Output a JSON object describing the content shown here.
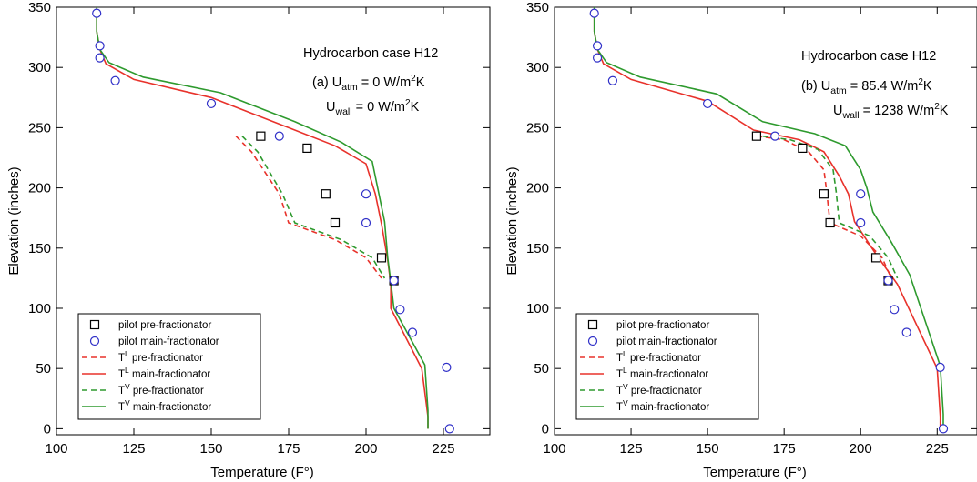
{
  "chart_data": [
    {
      "type": "line",
      "panel": "(a)",
      "annotations": {
        "title": "Hydrocarbon case H12",
        "uatm_prefix": "(a)  U",
        "uatm_sub": "atm",
        "uatm_value": " = 0 W/m",
        "uwall_prefix": "U",
        "uwall_sub": "wall",
        "uwall_value": " = 0 W/m",
        "unit_sup": "2",
        "unit_tail": "K"
      },
      "xlabel": "Temperature (F°)",
      "ylabel": "Elevation (inches)",
      "xlim": [
        100,
        240
      ],
      "ylim": [
        -5,
        350
      ],
      "xticks": [
        100,
        125,
        150,
        175,
        200,
        225
      ],
      "yticks": [
        0,
        50,
        100,
        150,
        200,
        250,
        300,
        350
      ],
      "legend": {
        "placement": "bottom-left",
        "entries": [
          {
            "marker": "square",
            "text": "pilot pre-fractionator"
          },
          {
            "marker": "circle",
            "text": "pilot main-fractionator"
          },
          {
            "line": "dashed",
            "color": "#e8322b",
            "sym": "T",
            "sup": "L",
            "text": " pre-fractionator"
          },
          {
            "line": "solid",
            "color": "#e8322b",
            "sym": "T",
            "sup": "L",
            "text": " main-fractionator"
          },
          {
            "line": "dashed",
            "color": "#2e9a2e",
            "sym": "T",
            "sup": "V",
            "text": " pre-fractionator"
          },
          {
            "line": "solid",
            "color": "#2e9a2e",
            "sym": "T",
            "sup": "V",
            "text": " main-fractionator"
          }
        ]
      },
      "series": [
        {
          "name": "pilot pre-fractionator",
          "kind": "scatter",
          "marker": "square",
          "color": "#000000",
          "x": [
            166,
            181,
            187,
            190,
            205,
            209
          ],
          "y": [
            243,
            233,
            195,
            171,
            142,
            123
          ]
        },
        {
          "name": "pilot main-fractionator",
          "kind": "scatter",
          "marker": "circle",
          "color": "#3030c8",
          "x": [
            113,
            114,
            114,
            119,
            150,
            172,
            200,
            200,
            209,
            211,
            215,
            226,
            227
          ],
          "y": [
            345,
            318,
            308,
            289,
            270,
            243,
            195,
            171,
            123,
            99,
            80,
            51,
            0
          ]
        },
        {
          "name": "T pre-fractionator (L)",
          "kind": "line",
          "dash": true,
          "color": "#e8322b",
          "x": [
            158,
            163,
            172,
            175,
            190,
            200,
            205
          ],
          "y": [
            243,
            230,
            195,
            171,
            157,
            142,
            125
          ]
        },
        {
          "name": "T main-fractionator (L)",
          "kind": "line",
          "dash": false,
          "color": "#e8322b",
          "x": [
            113,
            113,
            114,
            116,
            125,
            150,
            175,
            190,
            200,
            203,
            205,
            207,
            208,
            208,
            218,
            220,
            220
          ],
          "y": [
            350,
            330,
            315,
            303,
            290,
            275,
            250,
            235,
            220,
            195,
            170,
            140,
            120,
            100,
            50,
            10,
            0
          ]
        },
        {
          "name": "T pre-fractionator (V)",
          "kind": "line",
          "dash": true,
          "color": "#2e9a2e",
          "x": [
            160,
            165,
            173,
            177,
            192,
            202,
            206
          ],
          "y": [
            243,
            230,
            195,
            171,
            157,
            142,
            125
          ]
        },
        {
          "name": "T main-fractionator (V)",
          "kind": "line",
          "dash": false,
          "color": "#2e9a2e",
          "x": [
            113,
            113,
            114,
            117,
            128,
            153,
            177,
            192,
            202,
            204,
            206,
            207,
            208,
            209,
            219,
            220,
            220
          ],
          "y": [
            350,
            330,
            315,
            304,
            292,
            279,
            255,
            238,
            222,
            197,
            172,
            142,
            122,
            100,
            53,
            15,
            0
          ]
        }
      ]
    },
    {
      "type": "line",
      "panel": "(b)",
      "annotations": {
        "title": "Hydrocarbon case H12",
        "uatm_prefix": "(b)  U",
        "uatm_sub": "atm",
        "uatm_value": " = 85.4 W/m",
        "uwall_prefix": "U",
        "uwall_sub": "wall",
        "uwall_value": " = 1238 W/m",
        "unit_sup": "2",
        "unit_tail": "K"
      },
      "xlabel": "Temperature (F°)",
      "ylabel": "Elevation (inches)",
      "xlim": [
        100,
        238
      ],
      "ylim": [
        -5,
        350
      ],
      "xticks": [
        100,
        125,
        150,
        175,
        200,
        225
      ],
      "yticks": [
        0,
        50,
        100,
        150,
        200,
        250,
        300,
        350
      ],
      "legend": {
        "placement": "bottom-left",
        "entries": [
          {
            "marker": "square",
            "text": "pilot pre-fractionator"
          },
          {
            "marker": "circle",
            "text": "pilot main-fractionator"
          },
          {
            "line": "dashed",
            "color": "#e8322b",
            "sym": "T",
            "sup": "L",
            "text": " pre-fractionator"
          },
          {
            "line": "solid",
            "color": "#e8322b",
            "sym": "T",
            "sup": "L",
            "text": " main-fractionator"
          },
          {
            "line": "dashed",
            "color": "#2e9a2e",
            "sym": "T",
            "sup": "V",
            "text": " pre-fractionator"
          },
          {
            "line": "solid",
            "color": "#2e9a2e",
            "sym": "T",
            "sup": "V",
            "text": " main-fractionator"
          }
        ]
      },
      "series": [
        {
          "name": "pilot pre-fractionator",
          "kind": "scatter",
          "marker": "square",
          "color": "#000000",
          "x": [
            166,
            181,
            188,
            190,
            205,
            209
          ],
          "y": [
            243,
            233,
            195,
            171,
            142,
            123
          ]
        },
        {
          "name": "pilot main-fractionator",
          "kind": "scatter",
          "marker": "circle",
          "color": "#3030c8",
          "x": [
            113,
            114,
            114,
            119,
            150,
            172,
            200,
            200,
            209,
            211,
            215,
            226,
            227
          ],
          "y": [
            345,
            318,
            308,
            289,
            270,
            243,
            195,
            171,
            123,
            99,
            80,
            51,
            0
          ]
        },
        {
          "name": "T pre-fractionator (L)",
          "kind": "line",
          "dash": true,
          "color": "#e8322b",
          "x": [
            166,
            175,
            183,
            188,
            189,
            190,
            200,
            207,
            210
          ],
          "y": [
            243,
            240,
            230,
            215,
            195,
            171,
            160,
            142,
            125
          ]
        },
        {
          "name": "T main-fractionator (L)",
          "kind": "line",
          "dash": false,
          "color": "#e8322b",
          "x": [
            113,
            113,
            114,
            116,
            125,
            150,
            165,
            180,
            188,
            193,
            196,
            198,
            205,
            212,
            225,
            226,
            226
          ],
          "y": [
            350,
            330,
            315,
            303,
            290,
            272,
            248,
            240,
            230,
            210,
            195,
            172,
            145,
            120,
            50,
            10,
            0
          ]
        },
        {
          "name": "T pre-fractionator (V)",
          "kind": "line",
          "dash": true,
          "color": "#2e9a2e",
          "x": [
            168,
            177,
            186,
            191,
            192,
            193,
            203,
            209,
            212
          ],
          "y": [
            243,
            240,
            232,
            215,
            197,
            171,
            160,
            142,
            125
          ]
        },
        {
          "name": "T main-fractionator (V)",
          "kind": "line",
          "dash": false,
          "color": "#2e9a2e",
          "x": [
            113,
            113,
            114,
            117,
            128,
            153,
            168,
            185,
            195,
            200,
            202,
            204,
            210,
            216,
            226,
            227,
            227
          ],
          "y": [
            350,
            330,
            315,
            304,
            292,
            278,
            255,
            245,
            235,
            215,
            200,
            180,
            155,
            128,
            52,
            12,
            0
          ]
        }
      ]
    }
  ]
}
